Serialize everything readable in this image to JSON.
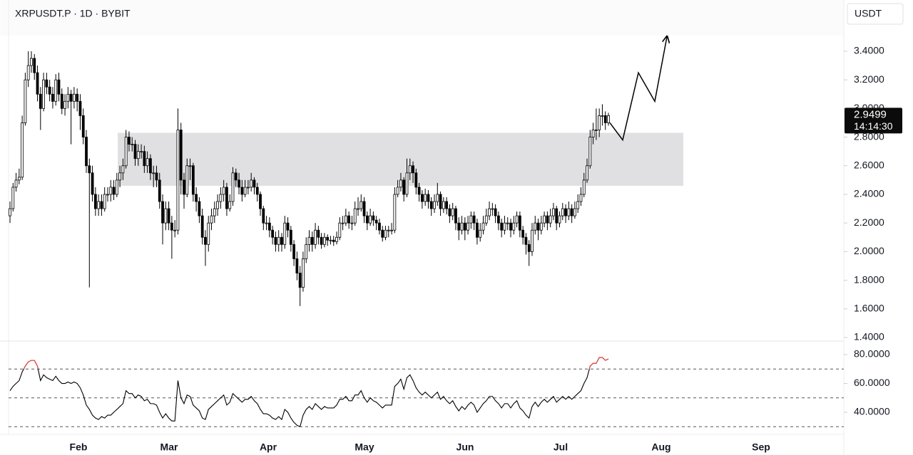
{
  "chart_data": {
    "type": "candlestick",
    "title": "XRPUSDT.P · 1D · BYBIT",
    "currency": "USDT",
    "candles": {
      "open": [
        2.25,
        2.3,
        2.45,
        2.5,
        2.52,
        2.9,
        3.2,
        3.3,
        3.35,
        3.25,
        3.1,
        3.0,
        3.2,
        3.15,
        3.1,
        3.05,
        3.2,
        3.1,
        3.0,
        3.05,
        3.1,
        3.05,
        3.1,
        3.05,
        2.95,
        2.8,
        2.6,
        2.55,
        2.4,
        2.3,
        2.35,
        2.3,
        2.4,
        2.4,
        2.45,
        2.4,
        2.5,
        2.55,
        2.6,
        2.8,
        2.75,
        2.75,
        2.65,
        2.7,
        2.7,
        2.6,
        2.65,
        2.55,
        2.55,
        2.5,
        2.35,
        2.2,
        2.3,
        2.2,
        2.15,
        2.15,
        2.85,
        2.5,
        2.4,
        2.6,
        2.6,
        2.4,
        2.35,
        2.25,
        2.1,
        2.05,
        2.2,
        2.25,
        2.3,
        2.35,
        2.4,
        2.45,
        2.3,
        2.35,
        2.55,
        2.5,
        2.45,
        2.4,
        2.45,
        2.45,
        2.5,
        2.45,
        2.4,
        2.3,
        2.2,
        2.2,
        2.15,
        2.1,
        2.05,
        2.1,
        2.05,
        2.2,
        2.15,
        2.05,
        1.95,
        1.85,
        1.75,
        1.95,
        2.05,
        2.1,
        2.05,
        2.15,
        2.1,
        2.05,
        2.1,
        2.08,
        2.08,
        2.07,
        2.1,
        2.2,
        2.2,
        2.25,
        2.2,
        2.2,
        2.3,
        2.3,
        2.35,
        2.25,
        2.2,
        2.25,
        2.22,
        2.2,
        2.15,
        2.1,
        2.15,
        2.15,
        2.15,
        2.4,
        2.45,
        2.5,
        2.4,
        2.55,
        2.6,
        2.55,
        2.45,
        2.4,
        2.35,
        2.4,
        2.35,
        2.3,
        2.35,
        2.4,
        2.3,
        2.35,
        2.3,
        2.25,
        2.3,
        2.2,
        2.15,
        2.2,
        2.15,
        2.2,
        2.25,
        2.2,
        2.1,
        2.15,
        2.2,
        2.25,
        2.3,
        2.3,
        2.25,
        2.2,
        2.15,
        2.2,
        2.2,
        2.15,
        2.2,
        2.25,
        2.15,
        2.1,
        2.05,
        2.0,
        2.15,
        2.2,
        2.15,
        2.2,
        2.25,
        2.2,
        2.25,
        2.3,
        2.2,
        2.25,
        2.3,
        2.25,
        2.3,
        2.25,
        2.3,
        2.35,
        2.4,
        2.5,
        2.6,
        2.8,
        2.85,
        2.85,
        2.95,
        2.95,
        2.9
      ],
      "high": [
        2.35,
        2.48,
        2.55,
        2.58,
        2.95,
        3.25,
        3.4,
        3.4,
        3.38,
        3.3,
        3.15,
        3.25,
        3.25,
        3.2,
        3.15,
        3.24,
        3.25,
        3.14,
        3.1,
        3.15,
        3.13,
        3.15,
        3.14,
        3.1,
        3.0,
        2.85,
        2.65,
        2.6,
        2.45,
        2.4,
        2.4,
        2.45,
        2.45,
        2.5,
        2.5,
        2.55,
        2.6,
        2.65,
        2.85,
        2.84,
        2.8,
        2.78,
        2.75,
        2.75,
        2.74,
        2.7,
        2.68,
        2.6,
        2.6,
        2.55,
        2.4,
        2.35,
        2.35,
        2.25,
        2.22,
        3.0,
        2.9,
        2.55,
        2.65,
        2.65,
        2.62,
        2.45,
        2.38,
        2.3,
        2.15,
        2.25,
        2.3,
        2.35,
        2.4,
        2.45,
        2.5,
        2.48,
        2.4,
        2.59,
        2.58,
        2.55,
        2.5,
        2.5,
        2.5,
        2.55,
        2.52,
        2.48,
        2.42,
        2.32,
        2.25,
        2.24,
        2.18,
        2.14,
        2.15,
        2.13,
        2.25,
        2.24,
        2.18,
        2.08,
        2.0,
        1.9,
        2.0,
        2.1,
        2.15,
        2.14,
        2.2,
        2.18,
        2.13,
        2.13,
        2.12,
        2.11,
        2.11,
        2.14,
        2.24,
        2.25,
        2.3,
        2.28,
        2.25,
        2.35,
        2.38,
        2.4,
        2.38,
        2.28,
        2.3,
        2.28,
        2.25,
        2.23,
        2.18,
        2.18,
        2.18,
        2.2,
        2.45,
        2.5,
        2.55,
        2.52,
        2.65,
        2.65,
        2.63,
        2.58,
        2.48,
        2.43,
        2.44,
        2.43,
        2.38,
        2.4,
        2.48,
        2.42,
        2.38,
        2.38,
        2.33,
        2.34,
        2.32,
        2.24,
        2.25,
        2.24,
        2.25,
        2.28,
        2.28,
        2.23,
        2.2,
        2.25,
        2.3,
        2.35,
        2.34,
        2.33,
        2.28,
        2.23,
        2.25,
        2.24,
        2.23,
        2.25,
        2.28,
        2.28,
        2.18,
        2.13,
        2.08,
        2.2,
        2.25,
        2.23,
        2.25,
        2.28,
        2.28,
        2.3,
        2.34,
        2.32,
        2.28,
        2.34,
        2.33,
        2.35,
        2.33,
        2.35,
        2.4,
        2.45,
        2.55,
        2.65,
        2.85,
        2.9,
        3.0,
        3.0,
        3.03,
        2.98,
        2.97
      ],
      "low": [
        2.2,
        2.28,
        2.42,
        2.47,
        2.5,
        2.88,
        3.15,
        3.25,
        3.2,
        3.05,
        2.85,
        2.98,
        3.1,
        3.05,
        3.0,
        3.02,
        3.05,
        2.96,
        2.95,
        3.0,
        2.75,
        3.0,
        2.98,
        2.85,
        2.75,
        2.55,
        1.75,
        2.35,
        2.25,
        2.25,
        2.25,
        2.28,
        2.35,
        2.35,
        2.36,
        2.38,
        2.45,
        2.5,
        2.58,
        2.7,
        2.7,
        2.6,
        2.6,
        2.65,
        2.55,
        2.55,
        2.5,
        2.45,
        2.45,
        2.3,
        2.05,
        2.15,
        2.15,
        1.95,
        2.1,
        2.12,
        2.4,
        2.3,
        2.38,
        2.5,
        2.35,
        2.28,
        2.2,
        2.05,
        1.9,
        2.0,
        2.15,
        2.2,
        2.25,
        2.3,
        2.35,
        2.25,
        2.28,
        2.32,
        2.45,
        2.4,
        2.35,
        2.38,
        2.4,
        2.42,
        2.4,
        2.35,
        2.25,
        2.15,
        2.15,
        2.1,
        2.05,
        2.0,
        2.0,
        2.0,
        2.02,
        2.1,
        2.0,
        1.9,
        1.8,
        1.62,
        1.72,
        1.92,
        2.0,
        2.0,
        2.02,
        2.05,
        2.02,
        2.03,
        2.04,
        2.05,
        2.04,
        2.05,
        2.08,
        2.15,
        2.18,
        2.16,
        2.15,
        2.18,
        2.25,
        2.28,
        2.2,
        2.15,
        2.18,
        2.18,
        2.15,
        2.12,
        2.07,
        2.08,
        2.1,
        2.12,
        2.13,
        2.38,
        2.42,
        2.35,
        2.38,
        2.5,
        2.48,
        2.4,
        2.35,
        2.3,
        2.32,
        2.3,
        2.25,
        2.27,
        2.32,
        2.25,
        2.27,
        2.26,
        2.2,
        2.22,
        2.15,
        2.08,
        2.12,
        2.08,
        2.12,
        2.16,
        2.15,
        2.05,
        2.07,
        2.12,
        2.18,
        2.22,
        2.25,
        2.2,
        2.15,
        2.1,
        2.12,
        2.15,
        2.1,
        2.12,
        2.17,
        2.1,
        2.05,
        1.98,
        1.9,
        1.97,
        2.12,
        2.08,
        2.12,
        2.17,
        2.15,
        2.17,
        2.22,
        2.15,
        2.17,
        2.22,
        2.2,
        2.22,
        2.2,
        2.23,
        2.27,
        2.32,
        2.38,
        2.48,
        2.58,
        2.75,
        2.78,
        2.8,
        2.88,
        2.85,
        2.88
      ],
      "close": [
        2.3,
        2.45,
        2.5,
        2.52,
        2.9,
        3.2,
        3.3,
        3.35,
        3.25,
        3.1,
        3.0,
        3.2,
        3.15,
        3.1,
        3.05,
        3.2,
        3.1,
        3.0,
        3.05,
        3.1,
        3.05,
        3.1,
        3.05,
        2.95,
        2.8,
        2.6,
        2.55,
        2.4,
        2.3,
        2.35,
        2.3,
        2.4,
        2.4,
        2.45,
        2.4,
        2.5,
        2.55,
        2.6,
        2.8,
        2.75,
        2.75,
        2.65,
        2.7,
        2.7,
        2.6,
        2.65,
        2.55,
        2.55,
        2.5,
        2.35,
        2.2,
        2.3,
        2.2,
        2.15,
        2.15,
        2.85,
        2.5,
        2.4,
        2.6,
        2.6,
        2.4,
        2.35,
        2.25,
        2.1,
        2.05,
        2.2,
        2.25,
        2.3,
        2.35,
        2.4,
        2.45,
        2.3,
        2.35,
        2.55,
        2.5,
        2.45,
        2.4,
        2.45,
        2.45,
        2.5,
        2.45,
        2.4,
        2.3,
        2.2,
        2.2,
        2.15,
        2.1,
        2.05,
        2.1,
        2.05,
        2.2,
        2.15,
        2.05,
        1.95,
        1.85,
        1.75,
        1.95,
        2.05,
        2.1,
        2.05,
        2.15,
        2.1,
        2.05,
        2.1,
        2.08,
        2.08,
        2.07,
        2.1,
        2.2,
        2.2,
        2.25,
        2.2,
        2.2,
        2.3,
        2.3,
        2.35,
        2.25,
        2.2,
        2.25,
        2.22,
        2.2,
        2.15,
        2.1,
        2.15,
        2.15,
        2.15,
        2.4,
        2.45,
        2.5,
        2.4,
        2.55,
        2.6,
        2.55,
        2.45,
        2.4,
        2.35,
        2.4,
        2.35,
        2.3,
        2.35,
        2.4,
        2.3,
        2.35,
        2.3,
        2.25,
        2.3,
        2.2,
        2.15,
        2.2,
        2.15,
        2.2,
        2.25,
        2.2,
        2.1,
        2.15,
        2.2,
        2.25,
        2.3,
        2.3,
        2.25,
        2.2,
        2.15,
        2.2,
        2.2,
        2.15,
        2.2,
        2.25,
        2.15,
        2.1,
        2.05,
        2.0,
        2.15,
        2.2,
        2.15,
        2.2,
        2.25,
        2.2,
        2.25,
        2.3,
        2.2,
        2.25,
        2.3,
        2.25,
        2.3,
        2.25,
        2.3,
        2.35,
        2.4,
        2.5,
        2.6,
        2.8,
        2.85,
        2.85,
        2.95,
        2.95,
        2.9,
        2.9499
      ]
    },
    "up_color": "#ffffff",
    "down_color": "#000000",
    "ylim": [
      1.375,
      3.758
    ],
    "yticks": [
      {
        "value": 1.4,
        "label": "1.4000"
      },
      {
        "value": 1.6,
        "label": "1.6000"
      },
      {
        "value": 1.8,
        "label": "1.8000"
      },
      {
        "value": 2.0,
        "label": "2.0000"
      },
      {
        "value": 2.2,
        "label": "2.2000"
      },
      {
        "value": 2.4,
        "label": "2.4000"
      },
      {
        "value": 2.6,
        "label": "2.6000"
      },
      {
        "value": 2.8,
        "label": "2.8000"
      },
      {
        "value": 3.0,
        "label": "3.0000"
      },
      {
        "value": 3.2,
        "label": "3.2000"
      },
      {
        "value": 3.4,
        "label": "3.4000"
      }
    ],
    "countdown": "14:14:30",
    "zone": {
      "low": 2.46,
      "high": 2.83,
      "color": "#e0e0e2"
    },
    "projection": [
      2.9,
      2.78,
      3.25,
      3.05,
      3.5
    ],
    "xticks": [
      "Feb",
      "Mar",
      "Apr",
      "May",
      "Jun",
      "Jul",
      "Aug",
      "Sep"
    ],
    "indicator": {
      "type": "line",
      "values": [
        55,
        58,
        60,
        62,
        68,
        72,
        75,
        76,
        76,
        72,
        62,
        66,
        64,
        63,
        62,
        65,
        62,
        60,
        60,
        61,
        60,
        61,
        60,
        57,
        52,
        45,
        42,
        38,
        36,
        35,
        37,
        36,
        38,
        38,
        40,
        42,
        44,
        46,
        55,
        53,
        53,
        50,
        52,
        51,
        48,
        49,
        46,
        46,
        45,
        40,
        36,
        39,
        36,
        34,
        34,
        62,
        50,
        46,
        52,
        51,
        45,
        43,
        41,
        36,
        35,
        42,
        44,
        46,
        48,
        50,
        52,
        45,
        47,
        53,
        51,
        49,
        47,
        49,
        49,
        51,
        48,
        46,
        42,
        39,
        39,
        38,
        36,
        35,
        37,
        35,
        42,
        40,
        36,
        33,
        31,
        30,
        38,
        42,
        44,
        42,
        46,
        44,
        42,
        44,
        43,
        43,
        43,
        45,
        49,
        49,
        51,
        48,
        48,
        52,
        52,
        55,
        50,
        47,
        50,
        48,
        47,
        45,
        43,
        45,
        45,
        45,
        58,
        60,
        63,
        56,
        64,
        66,
        62,
        57,
        54,
        52,
        54,
        52,
        50,
        52,
        54,
        49,
        51,
        48,
        46,
        48,
        44,
        41,
        44,
        42,
        45,
        47,
        45,
        40,
        43,
        46,
        48,
        51,
        51,
        48,
        46,
        43,
        46,
        46,
        43,
        46,
        48,
        43,
        41,
        38,
        36,
        44,
        47,
        44,
        47,
        49,
        47,
        49,
        51,
        47,
        49,
        51,
        49,
        51,
        49,
        51,
        53,
        55,
        60,
        64,
        72,
        74,
        74,
        78,
        78,
        76,
        77
      ],
      "color": "#000000",
      "overbought_color": "#e2504b",
      "ylim": [
        24.7,
        88.9
      ],
      "yticks": [
        {
          "value": 40,
          "label": "40.0000"
        },
        {
          "value": 60,
          "label": "60.0000"
        },
        {
          "value": 80,
          "label": "80.0000"
        }
      ],
      "bands": [
        70,
        50,
        30
      ]
    }
  }
}
